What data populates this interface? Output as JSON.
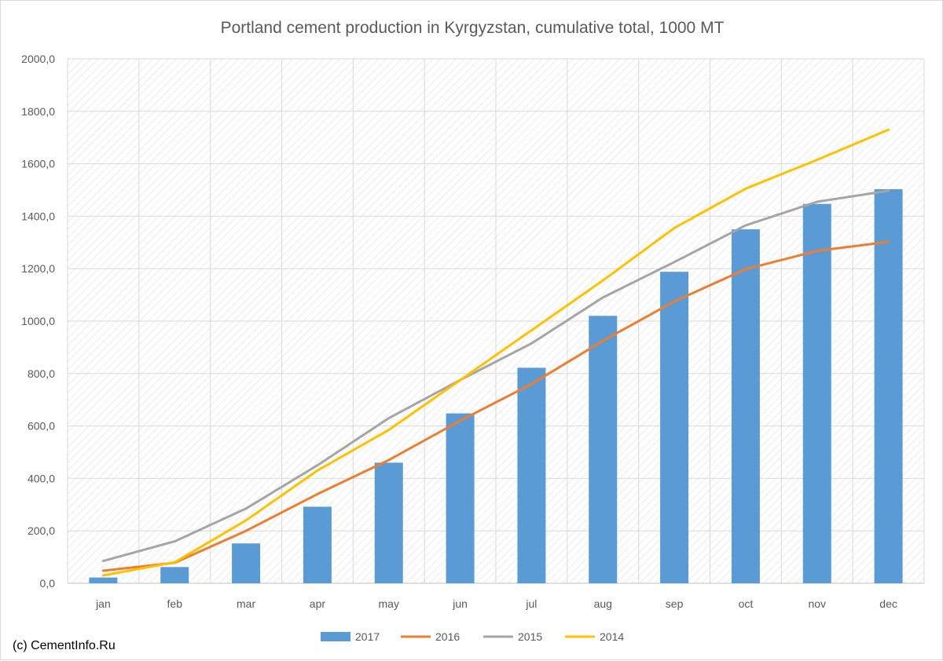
{
  "chart_data": {
    "type": "bar",
    "title": "Portland cement production in Kyrgyzstan, cumulative total, 1000 MT",
    "xlabel": "",
    "ylabel": "",
    "ylim": [
      0,
      2000
    ],
    "yticks": [
      "0,0",
      "200,0",
      "400,0",
      "600,0",
      "800,0",
      "1000,0",
      "1200,0",
      "1400,0",
      "1600,0",
      "1800,0",
      "2000,0"
    ],
    "categories": [
      "jan",
      "feb",
      "mar",
      "apr",
      "may",
      "jun",
      "jul",
      "aug",
      "sep",
      "oct",
      "nov",
      "dec"
    ],
    "grid": true,
    "legend_position": "bottom",
    "series": [
      {
        "name": "2017",
        "kind": "bar",
        "color": "#5b9bd5",
        "values": [
          22,
          62,
          152,
          292,
          460,
          648,
          822,
          1020,
          1188,
          1350,
          1447,
          1503
        ]
      },
      {
        "name": "2016",
        "kind": "line",
        "color": "#ed7d31",
        "values": [
          48,
          78,
          200,
          340,
          470,
          620,
          760,
          925,
          1075,
          1198,
          1268,
          1302
        ]
      },
      {
        "name": "2015",
        "kind": "line",
        "color": "#a5a5a5",
        "values": [
          85,
          160,
          285,
          450,
          630,
          775,
          915,
          1090,
          1225,
          1365,
          1455,
          1497
        ]
      },
      {
        "name": "2014",
        "kind": "line",
        "color": "#ffc000",
        "values": [
          30,
          80,
          240,
          430,
          585,
          775,
          965,
          1155,
          1355,
          1505,
          1615,
          1730
        ]
      }
    ]
  },
  "source_note": "(c) CementInfo.Ru"
}
